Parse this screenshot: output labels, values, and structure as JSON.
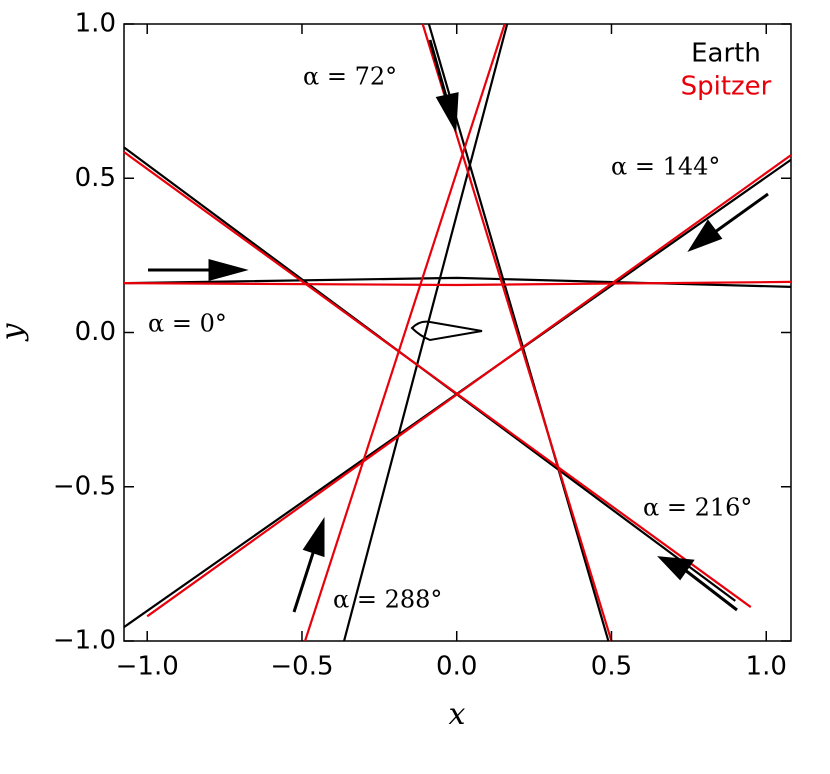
{
  "chart_data": {
    "type": "line",
    "xlabel": "x",
    "ylabel": "y",
    "xlim": [
      -1.075,
      1.08
    ],
    "ylim": [
      -1.0,
      1.0
    ],
    "xticks": [
      {
        "value": -1.0,
        "label": "−1.0"
      },
      {
        "value": -0.5,
        "label": "−0.5"
      },
      {
        "value": 0.0,
        "label": "0.0"
      },
      {
        "value": 0.5,
        "label": "0.5"
      },
      {
        "value": 1.0,
        "label": "1.0"
      }
    ],
    "yticks": [
      {
        "value": -1.0,
        "label": "−1.0"
      },
      {
        "value": -0.5,
        "label": "−0.5"
      },
      {
        "value": 0.0,
        "label": "0.0"
      },
      {
        "value": 0.5,
        "label": "0.5"
      },
      {
        "value": 1.0,
        "label": "1.0"
      }
    ],
    "legend": "upper right",
    "annotations": [
      "α = 0°",
      "α = 72°",
      "α = 144°",
      "α = 216°",
      "α = 288°"
    ],
    "series": [
      {
        "name": "Earth",
        "color": "#000000",
        "lines": [
          {
            "x": [
              -1.075,
              0.0,
              1.08
            ],
            "y": [
              0.16,
              0.177,
              0.148
            ]
          },
          {
            "x": [
              -0.09,
              0.49
            ],
            "y": [
              1.0,
              -1.0
            ]
          },
          {
            "x": [
              -1.075,
              1.08
            ],
            "y": [
              -0.955,
              0.56
            ]
          },
          {
            "x": [
              -1.075,
              0.9
            ],
            "y": [
              0.6,
              -0.87
            ]
          },
          {
            "x": [
              0.163,
              -0.364
            ],
            "y": [
              1.0,
              -1.0
            ]
          }
        ]
      },
      {
        "name": "Spitzer",
        "color": "#e8000b",
        "lines": [
          {
            "x": [
              -1.075,
              0.0,
              1.08
            ],
            "y": [
              0.16,
              0.154,
              0.164
            ]
          },
          {
            "x": [
              -0.11,
              0.5
            ],
            "y": [
              1.0,
              -1.0
            ]
          },
          {
            "x": [
              -1.0,
              1.08
            ],
            "y": [
              -0.92,
              0.575
            ]
          },
          {
            "x": [
              -1.075,
              0.95
            ],
            "y": [
              0.585,
              -0.89
            ]
          },
          {
            "x": [
              0.155,
              -0.49
            ],
            "y": [
              1.0,
              -1.0
            ]
          }
        ]
      }
    ]
  }
}
